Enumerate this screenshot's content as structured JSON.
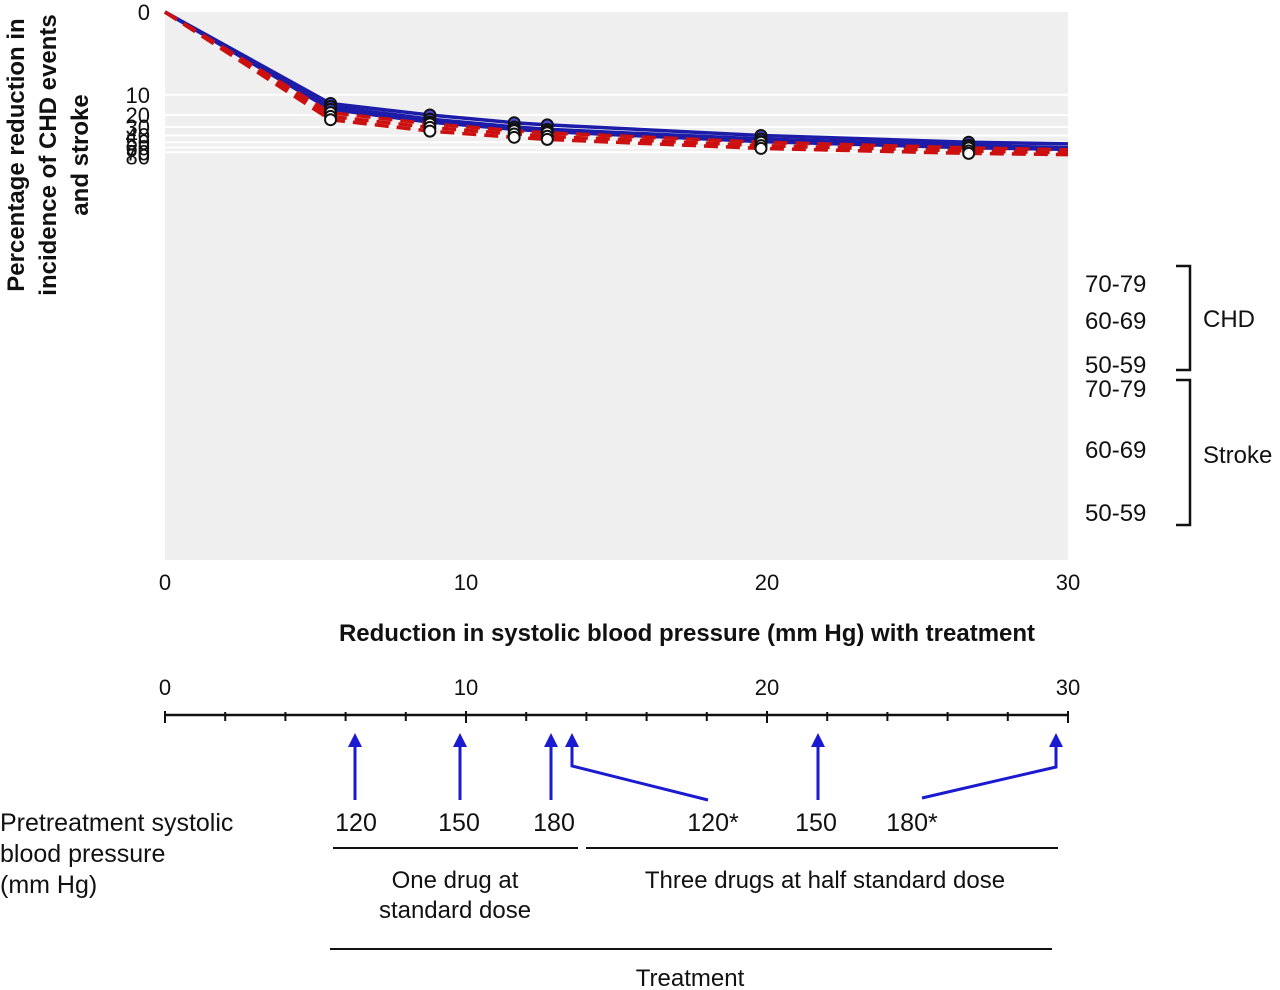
{
  "chart_data": {
    "type": "line",
    "xlabel": "Reduction in systolic blood pressure (mm Hg) with treatment",
    "ylabel_lines": [
      "Percentage reduction in",
      "incidence of CHD events",
      "and stroke"
    ],
    "xlim": [
      0,
      30
    ],
    "ylim": [
      0,
      80
    ],
    "y_axis_inverted": true,
    "y_scale": "log-like",
    "x_ticks": [
      "0",
      "10",
      "20",
      "30"
    ],
    "y_ticks": [
      "0",
      "10",
      "20",
      "30",
      "40",
      "50",
      "60",
      "70",
      "80"
    ],
    "grid": "horizontal",
    "markers_x": [
      5.5,
      8.8,
      11.6,
      12.7,
      19.8,
      26.7
    ],
    "series": [
      {
        "group": "CHD",
        "name": "70-79",
        "color": "#1c1ca8",
        "style": "solid",
        "marker": "filled",
        "end_value": 53,
        "points": [
          [
            5.5,
            13.5
          ],
          [
            8.8,
            20
          ],
          [
            11.6,
            26
          ],
          [
            12.7,
            28
          ],
          [
            19.8,
            40
          ],
          [
            26.7,
            50
          ]
        ]
      },
      {
        "group": "CHD",
        "name": "60-69",
        "color": "#1c1ca8",
        "style": "solid",
        "marker": "filled",
        "end_value": 60,
        "points": [
          [
            5.5,
            15
          ],
          [
            8.8,
            23
          ],
          [
            11.6,
            30
          ],
          [
            12.7,
            32.5
          ],
          [
            19.8,
            45
          ],
          [
            26.7,
            55.5
          ]
        ]
      },
      {
        "group": "CHD",
        "name": "50-59",
        "color": "#1c1ca8",
        "style": "solid",
        "marker": "filled",
        "end_value": 63.5,
        "points": [
          [
            5.5,
            16.5
          ],
          [
            8.8,
            25.5
          ],
          [
            11.6,
            32.5
          ],
          [
            12.7,
            35
          ],
          [
            19.8,
            49
          ],
          [
            26.7,
            60
          ]
        ]
      },
      {
        "group": "Stroke",
        "name": "70-79",
        "color": "#cc1010",
        "style": "dashed",
        "marker": "open",
        "end_value": 64.5,
        "points": [
          [
            5.5,
            18.5
          ],
          [
            8.8,
            27
          ],
          [
            11.6,
            34
          ],
          [
            12.7,
            36.5
          ],
          [
            19.8,
            50
          ],
          [
            26.7,
            60.5
          ]
        ]
      },
      {
        "group": "Stroke",
        "name": "60-69",
        "color": "#cc1010",
        "style": "dashed",
        "marker": "open",
        "end_value": 71.5,
        "points": [
          [
            5.5,
            21
          ],
          [
            8.8,
            30.5
          ],
          [
            11.6,
            38
          ],
          [
            12.7,
            41
          ],
          [
            19.8,
            56
          ],
          [
            26.7,
            67
          ]
        ]
      },
      {
        "group": "Stroke",
        "name": "50-59",
        "color": "#cc1010",
        "style": "dashed",
        "marker": "open",
        "end_value": 75.5,
        "points": [
          [
            5.5,
            23.5
          ],
          [
            8.8,
            34.5
          ],
          [
            11.6,
            42.5
          ],
          [
            12.7,
            45.5
          ],
          [
            19.8,
            61.5
          ],
          [
            26.7,
            72.5
          ]
        ]
      }
    ],
    "group_labels": [
      "CHD",
      "Stroke"
    ]
  },
  "scale": {
    "ticks": [
      "0",
      "10",
      "20",
      "30"
    ],
    "arrows": [
      {
        "pos": 6.3,
        "label": "120"
      },
      {
        "pos": 9.8,
        "label": "150"
      },
      {
        "pos": 12.9,
        "label": "180"
      },
      {
        "pos": 13.5,
        "label": "120*"
      },
      {
        "pos": 21.8,
        "label": "150"
      },
      {
        "pos": 29.7,
        "label": "180*"
      }
    ]
  },
  "labels": {
    "pretreatment": [
      "Pretreatment systolic",
      "blood pressure",
      "(mm Hg)"
    ],
    "one_drug": [
      "One drug at",
      "standard dose"
    ],
    "three_drugs": "Three drugs at half standard dose",
    "treatment": "Treatment"
  },
  "colors": {
    "blue": "#1c1ca8",
    "red": "#cc1010",
    "plot_bg": "#efefef",
    "grid": "#ffffff",
    "arrow": "#1a1ad0"
  }
}
